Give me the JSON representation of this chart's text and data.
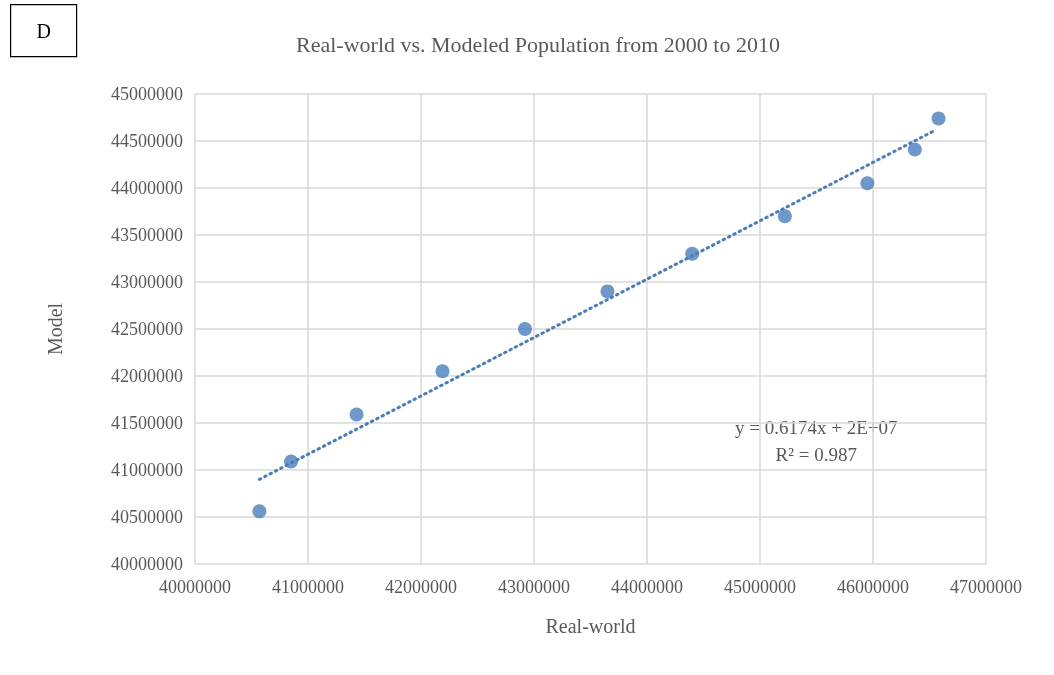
{
  "chart_data": {
    "type": "scatter",
    "title": "Real-world vs. Modeled Population from 2000 to 2010",
    "xlabel": "Real-world",
    "ylabel": "Model",
    "series": [
      {
        "color": "#4a7ebb",
        "marker": "circle",
        "x": [
          40570000,
          40850000,
          41430000,
          42190000,
          42920000,
          43650000,
          44400000,
          45220000,
          45950000,
          46370000,
          46580000
        ],
        "values": [
          40560000,
          41090000,
          41590000,
          42050000,
          42500000,
          42900000,
          43300000,
          43700000,
          44050000,
          44410000,
          44740000
        ]
      },
      {
        "type": "line",
        "color": "#4a7ebb",
        "marker": "none",
        "line_style": "dotted",
        "x": [
          40570000,
          46560000
        ],
        "values": [
          40900000,
          44620000
        ]
      }
    ],
    "xlim": [
      40000000,
      47000000
    ],
    "xticks": [
      40000000,
      41000000,
      42000000,
      43000000,
      44000000,
      45000000,
      46000000,
      47000000
    ],
    "ylim": [
      40000000,
      45000000
    ],
    "yticks": [
      40000000,
      40500000,
      41000000,
      41500000,
      42000000,
      42500000,
      43000000,
      43500000,
      44000000,
      44500000,
      45000000
    ],
    "grid": true,
    "annotations": [
      "D",
      "y = 0.6174x + 2E+07\nR² = 0.987"
    ]
  }
}
